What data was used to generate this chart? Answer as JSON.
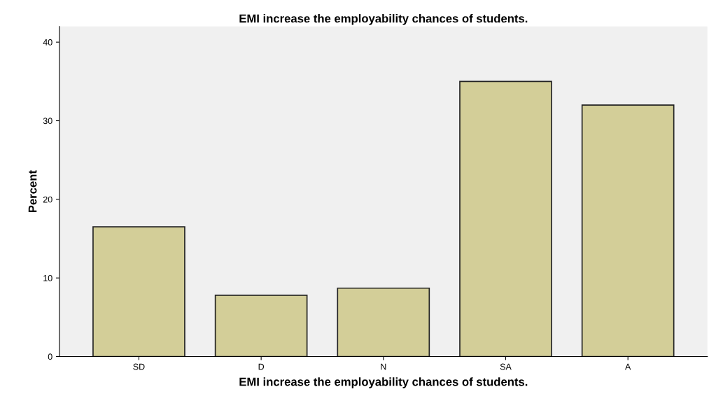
{
  "chart_data": {
    "type": "bar",
    "title": "EMI increase the employability chances of students.",
    "xlabel": "EMI increase the employability chances of students.",
    "ylabel": "Percent",
    "categories": [
      "SD",
      "D",
      "N",
      "SA",
      "A"
    ],
    "values": [
      16.5,
      7.8,
      8.7,
      35.0,
      32.0
    ],
    "color": "#d3ce98",
    "ylim": [
      0,
      42
    ],
    "yticks": [
      0,
      10,
      20,
      30,
      40
    ],
    "grid": false
  }
}
